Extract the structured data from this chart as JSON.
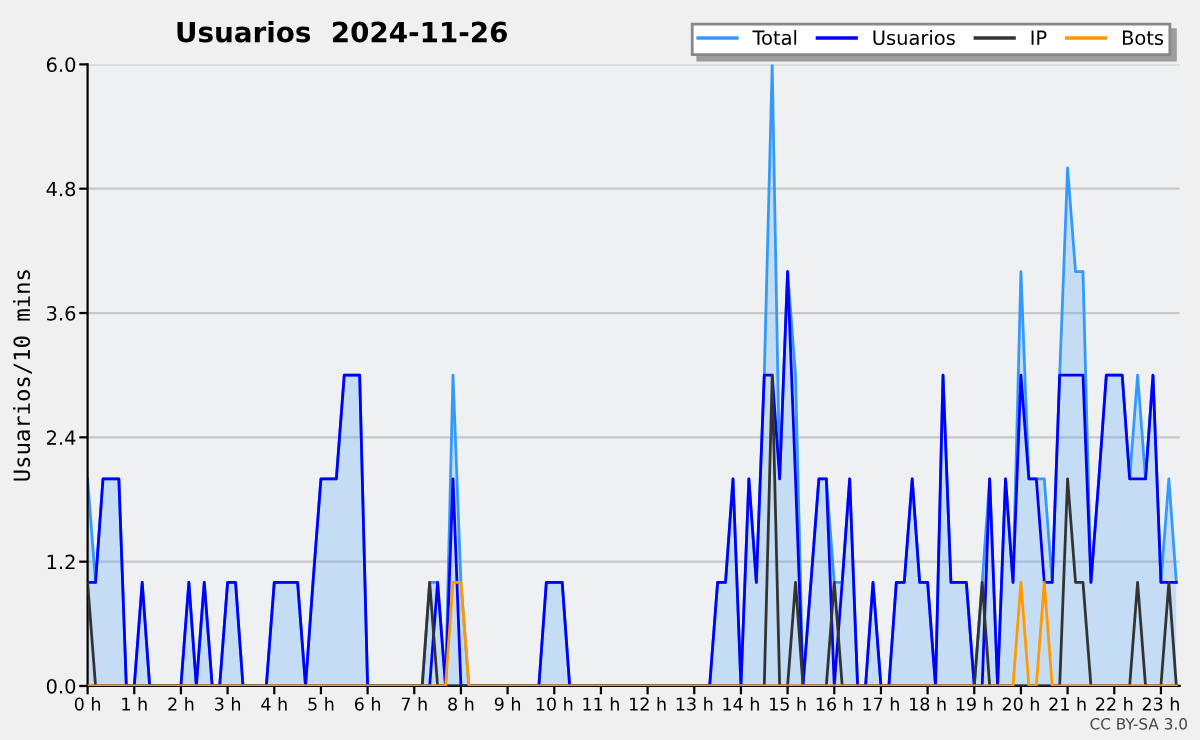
{
  "chart_data": {
    "type": "line",
    "title": "Usuarios  2024-11-26",
    "ylabel": "Usuarios/10 mins",
    "x": [
      0,
      0.17,
      0.33,
      0.5,
      0.67,
      0.83,
      1,
      1.17,
      1.33,
      1.5,
      1.67,
      1.83,
      2,
      2.17,
      2.33,
      2.5,
      2.67,
      2.83,
      3,
      3.17,
      3.33,
      3.5,
      3.67,
      3.83,
      4,
      4.17,
      4.33,
      4.5,
      4.67,
      4.83,
      5,
      5.17,
      5.33,
      5.5,
      5.67,
      5.83,
      6,
      6.17,
      6.33,
      6.5,
      6.67,
      6.83,
      7,
      7.17,
      7.33,
      7.5,
      7.67,
      7.83,
      8,
      8.17,
      8.33,
      8.5,
      8.67,
      8.83,
      9,
      9.17,
      9.33,
      9.5,
      9.67,
      9.83,
      10,
      10.17,
      10.33,
      10.5,
      10.67,
      10.83,
      11,
      11.17,
      11.33,
      11.5,
      11.67,
      11.83,
      12,
      12.17,
      12.33,
      12.5,
      12.67,
      12.83,
      13,
      13.17,
      13.33,
      13.5,
      13.67,
      13.83,
      14,
      14.17,
      14.33,
      14.5,
      14.67,
      14.83,
      15,
      15.17,
      15.33,
      15.5,
      15.67,
      15.83,
      16,
      16.17,
      16.33,
      16.5,
      16.67,
      16.83,
      17,
      17.17,
      17.33,
      17.5,
      17.67,
      17.83,
      18,
      18.17,
      18.33,
      18.5,
      18.67,
      18.83,
      19,
      19.17,
      19.33,
      19.5,
      19.67,
      19.83,
      20,
      20.17,
      20.33,
      20.5,
      20.67,
      20.83,
      21,
      21.17,
      21.33,
      21.5,
      21.67,
      21.83,
      22,
      22.17,
      22.33,
      22.5,
      22.67,
      22.83,
      23,
      23.17,
      23.33
    ],
    "series": [
      {
        "name": "Total",
        "type": "area",
        "color": "#3399ff",
        "values": [
          2,
          1,
          2,
          2,
          2,
          0,
          0,
          1,
          0,
          0,
          0,
          0,
          0,
          1,
          0,
          1,
          0,
          0,
          1,
          1,
          0,
          0,
          0,
          0,
          1,
          1,
          1,
          1,
          0,
          1,
          2,
          2,
          2,
          3,
          3,
          3,
          0,
          0,
          0,
          0,
          0,
          0,
          0,
          0,
          1,
          1,
          0,
          3,
          1,
          0,
          0,
          0,
          0,
          0,
          0,
          0,
          0,
          0,
          0,
          1,
          1,
          1,
          0,
          0,
          0,
          0,
          0,
          0,
          0,
          0,
          0,
          0,
          0,
          0,
          0,
          0,
          0,
          0,
          0,
          0,
          0,
          1,
          1,
          2,
          0,
          2,
          1,
          3,
          6,
          2,
          4,
          3,
          0,
          1,
          2,
          2,
          1,
          1,
          2,
          0,
          0,
          1,
          0,
          0,
          1,
          1,
          2,
          1,
          1,
          0,
          3,
          1,
          1,
          1,
          0,
          1,
          2,
          0,
          2,
          1,
          4,
          2,
          2,
          2,
          1,
          3,
          5,
          4,
          4,
          1,
          2,
          3,
          3,
          3,
          2,
          3,
          2,
          3,
          1,
          2,
          1
        ]
      },
      {
        "name": "Usuarios",
        "color": "#0000ff",
        "values": [
          1,
          1,
          2,
          2,
          2,
          0,
          0,
          1,
          0,
          0,
          0,
          0,
          0,
          1,
          0,
          1,
          0,
          0,
          1,
          1,
          0,
          0,
          0,
          0,
          1,
          1,
          1,
          1,
          0,
          1,
          2,
          2,
          2,
          3,
          3,
          3,
          0,
          0,
          0,
          0,
          0,
          0,
          0,
          0,
          0,
          1,
          0,
          2,
          0,
          0,
          0,
          0,
          0,
          0,
          0,
          0,
          0,
          0,
          0,
          1,
          1,
          1,
          0,
          0,
          0,
          0,
          0,
          0,
          0,
          0,
          0,
          0,
          0,
          0,
          0,
          0,
          0,
          0,
          0,
          0,
          0,
          1,
          1,
          2,
          0,
          2,
          1,
          3,
          3,
          2,
          4,
          2,
          0,
          1,
          2,
          2,
          0,
          1,
          2,
          0,
          0,
          1,
          0,
          0,
          1,
          1,
          2,
          1,
          1,
          0,
          3,
          1,
          1,
          1,
          0,
          0,
          2,
          0,
          2,
          1,
          3,
          2,
          2,
          1,
          1,
          3,
          3,
          3,
          3,
          1,
          2,
          3,
          3,
          3,
          2,
          2,
          2,
          3,
          1,
          1,
          1
        ]
      },
      {
        "name": "IP",
        "color": "#333333",
        "values": [
          1,
          0,
          0,
          0,
          0,
          0,
          0,
          0,
          0,
          0,
          0,
          0,
          0,
          0,
          0,
          0,
          0,
          0,
          0,
          0,
          0,
          0,
          0,
          0,
          0,
          0,
          0,
          0,
          0,
          0,
          0,
          0,
          0,
          0,
          0,
          0,
          0,
          0,
          0,
          0,
          0,
          0,
          0,
          0,
          1,
          0,
          0,
          0,
          0,
          0,
          0,
          0,
          0,
          0,
          0,
          0,
          0,
          0,
          0,
          0,
          0,
          0,
          0,
          0,
          0,
          0,
          0,
          0,
          0,
          0,
          0,
          0,
          0,
          0,
          0,
          0,
          0,
          0,
          0,
          0,
          0,
          0,
          0,
          0,
          0,
          0,
          0,
          0,
          3,
          0,
          0,
          1,
          0,
          0,
          0,
          0,
          1,
          0,
          0,
          0,
          0,
          0,
          0,
          0,
          0,
          0,
          0,
          0,
          0,
          0,
          0,
          0,
          0,
          0,
          0,
          1,
          0,
          0,
          0,
          0,
          0,
          0,
          0,
          0,
          0,
          0,
          2,
          1,
          1,
          0,
          0,
          0,
          0,
          0,
          0,
          1,
          0,
          0,
          0,
          1,
          0
        ]
      },
      {
        "name": "Bots",
        "color": "#ff9900",
        "values": [
          0,
          0,
          0,
          0,
          0,
          0,
          0,
          0,
          0,
          0,
          0,
          0,
          0,
          0,
          0,
          0,
          0,
          0,
          0,
          0,
          0,
          0,
          0,
          0,
          0,
          0,
          0,
          0,
          0,
          0,
          0,
          0,
          0,
          0,
          0,
          0,
          0,
          0,
          0,
          0,
          0,
          0,
          0,
          0,
          0,
          0,
          0,
          1,
          1,
          0,
          0,
          0,
          0,
          0,
          0,
          0,
          0,
          0,
          0,
          0,
          0,
          0,
          0,
          0,
          0,
          0,
          0,
          0,
          0,
          0,
          0,
          0,
          0,
          0,
          0,
          0,
          0,
          0,
          0,
          0,
          0,
          0,
          0,
          0,
          0,
          0,
          0,
          0,
          0,
          0,
          0,
          0,
          0,
          0,
          0,
          0,
          0,
          0,
          0,
          0,
          0,
          0,
          0,
          0,
          0,
          0,
          0,
          0,
          0,
          0,
          0,
          0,
          0,
          0,
          0,
          0,
          0,
          0,
          0,
          0,
          1,
          0,
          0,
          1,
          0,
          0,
          0,
          0,
          0,
          0,
          0,
          0,
          0,
          0,
          0,
          0,
          0,
          0,
          0,
          0,
          0
        ]
      }
    ],
    "xlim": [
      0,
      23.4
    ],
    "xticks": [
      {
        "value": 0,
        "label": "0 h"
      },
      {
        "value": 1,
        "label": "1 h"
      },
      {
        "value": 2,
        "label": "2 h"
      },
      {
        "value": 3,
        "label": "3 h"
      },
      {
        "value": 4,
        "label": "4 h"
      },
      {
        "value": 5,
        "label": "5 h"
      },
      {
        "value": 6,
        "label": "6 h"
      },
      {
        "value": 7,
        "label": "7 h"
      },
      {
        "value": 8,
        "label": "8 h"
      },
      {
        "value": 9,
        "label": "9 h"
      },
      {
        "value": 10,
        "label": "10 h"
      },
      {
        "value": 11,
        "label": "11 h"
      },
      {
        "value": 12,
        "label": "12 h"
      },
      {
        "value": 13,
        "label": "13 h"
      },
      {
        "value": 14,
        "label": "14 h"
      },
      {
        "value": 15,
        "label": "15 h"
      },
      {
        "value": 16,
        "label": "16 h"
      },
      {
        "value": 17,
        "label": "17 h"
      },
      {
        "value": 18,
        "label": "18 h"
      },
      {
        "value": 19,
        "label": "19 h"
      },
      {
        "value": 20,
        "label": "20 h"
      },
      {
        "value": 21,
        "label": "21 h"
      },
      {
        "value": 22,
        "label": "22 h"
      },
      {
        "value": 23,
        "label": "23 h"
      }
    ],
    "ylim": [
      0,
      6
    ],
    "yticks": [
      {
        "value": 0,
        "label": "0.0"
      },
      {
        "value": 1.2,
        "label": "1.2"
      },
      {
        "value": 2.4,
        "label": "2.4"
      },
      {
        "value": 3.6,
        "label": "3.6"
      },
      {
        "value": 4.8,
        "label": "4.8"
      },
      {
        "value": 6,
        "label": "6.0"
      }
    ],
    "grid": "y",
    "legend": "top right",
    "marker": "none",
    "line_style": "solid",
    "annotations": [
      "CC BY-SA 3.0"
    ]
  }
}
